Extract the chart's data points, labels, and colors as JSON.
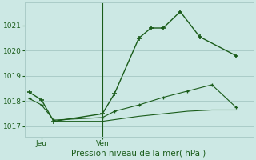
{
  "bg_color": "#cce8e4",
  "grid_color": "#aaccc8",
  "line_color": "#1a5c1a",
  "title": "Pression niveau de la mer( hPa )",
  "xlabel_jeu": "Jeu",
  "xlabel_ven": "Ven",
  "ylim": [
    1016.6,
    1021.9
  ],
  "yticks": [
    1017,
    1018,
    1019,
    1020,
    1021
  ],
  "xlim": [
    -0.2,
    9.2
  ],
  "jeu_tick_x": 0.5,
  "ven_line_x": 3.0,
  "series1_x": [
    0.0,
    0.5,
    1.0,
    3.0,
    3.5,
    4.5,
    5.0,
    5.5,
    6.2,
    7.0,
    8.5
  ],
  "series1_y": [
    1018.35,
    1018.05,
    1017.2,
    1017.5,
    1018.3,
    1020.5,
    1020.9,
    1020.9,
    1021.55,
    1020.55,
    1019.8
  ],
  "series2_x": [
    0.0,
    0.5,
    1.0,
    3.0,
    3.5,
    4.5,
    5.5,
    6.5,
    7.5,
    8.5
  ],
  "series2_y": [
    1018.1,
    1017.85,
    1017.25,
    1017.35,
    1017.6,
    1017.85,
    1018.15,
    1018.4,
    1018.65,
    1017.75
  ],
  "series3_x": [
    1.0,
    3.0,
    4.5,
    5.5,
    6.5,
    7.5,
    8.5
  ],
  "series3_y": [
    1017.2,
    1017.2,
    1017.4,
    1017.5,
    1017.6,
    1017.65,
    1017.65
  ]
}
